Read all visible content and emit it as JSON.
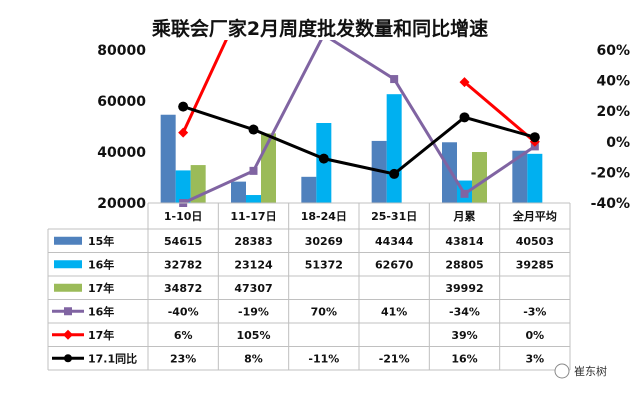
{
  "chart_data": {
    "type": "bar",
    "title": "乘联会厂家2月周度批发数量和同比增速",
    "categories": [
      "1-10日",
      "11-17日",
      "18-24日",
      "25-31日",
      "月累",
      "全月平均"
    ],
    "y_left": {
      "ticks": [
        "80000",
        "60000",
        "40000",
        "20000"
      ],
      "range": [
        20000,
        80000
      ]
    },
    "y_right": {
      "ticks": [
        "60%",
        "40%",
        "20%",
        "0%",
        "-20%",
        "-40%"
      ],
      "range": [
        -40,
        60
      ]
    },
    "series": [
      {
        "name": "15年",
        "kind": "bar",
        "color": "#4F81BD",
        "values": [
          54615,
          28383,
          30269,
          44344,
          43814,
          40503
        ],
        "labels": [
          "54615",
          "28383",
          "30269",
          "44344",
          "43814",
          "40503"
        ]
      },
      {
        "name": "16年",
        "kind": "bar",
        "color": "#00B0F0",
        "values": [
          32782,
          23124,
          51372,
          62670,
          28805,
          39285
        ],
        "labels": [
          "32782",
          "23124",
          "51372",
          "62670",
          "28805",
          "39285"
        ]
      },
      {
        "name": "17年",
        "kind": "bar",
        "color": "#9BBB59",
        "values": [
          34872,
          47307,
          null,
          null,
          39992,
          null
        ],
        "labels": [
          "34872",
          "47307",
          "",
          "",
          "39992",
          ""
        ]
      },
      {
        "name": "16年",
        "kind": "line",
        "color": "#8064A2",
        "marker": "square",
        "values": [
          -40,
          -19,
          70,
          41,
          -34,
          -3
        ],
        "labels": [
          "-40%",
          "-19%",
          "70%",
          "41%",
          "-34%",
          "-3%"
        ]
      },
      {
        "name": "17年",
        "kind": "line",
        "color": "#FF0000",
        "marker": "diamond",
        "values": [
          6,
          105,
          null,
          null,
          39,
          0
        ],
        "labels": [
          "6%",
          "105%",
          "",
          "",
          "39%",
          "0%"
        ]
      },
      {
        "name": "17.1同比",
        "kind": "line",
        "color": "#000000",
        "marker": "circle",
        "values": [
          23,
          8,
          -11,
          -21,
          16,
          3
        ],
        "labels": [
          "23%",
          "8%",
          "-11%",
          "-21%",
          "16%",
          "3%"
        ]
      }
    ],
    "legend_placement": "table-below",
    "grid": false
  },
  "watermark": "崔东树"
}
